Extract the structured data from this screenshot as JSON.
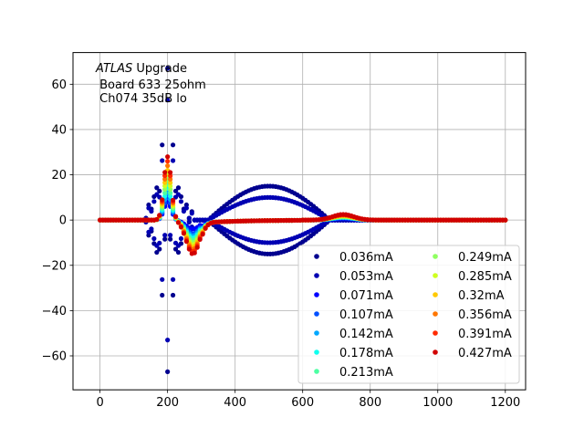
{
  "chart_data": {
    "type": "scatter",
    "title": "",
    "xlabel": "",
    "ylabel": "",
    "xlim": [
      -80,
      1260
    ],
    "ylim": [
      -75,
      74
    ],
    "xticks": [
      0,
      200,
      400,
      600,
      800,
      1000,
      1200
    ],
    "yticks": [
      -60,
      -40,
      -20,
      0,
      20,
      40,
      60
    ],
    "xtick_labels": [
      "0",
      "200",
      "400",
      "600",
      "800",
      "1000",
      "1200"
    ],
    "ytick_labels": [
      "−60",
      "−40",
      "−20",
      "0",
      "20",
      "40",
      "60"
    ],
    "grid": true,
    "legend_position": "lower-right",
    "legend_columns": 2,
    "annotation": {
      "line1_italic": "ATLAS",
      "line1_rest": " Upgrade",
      "line2": " Board 633 25ohm",
      "line3": " Ch074 35dB lo"
    },
    "series": [
      {
        "name": "0.036mA",
        "color": "#00008f",
        "peak": 67,
        "undershoot": -67,
        "plateau": 15,
        "kind": "osc"
      },
      {
        "name": "0.053mA",
        "color": "#0000b3",
        "peak": 53,
        "undershoot": -47,
        "plateau": 10,
        "kind": "osc"
      },
      {
        "name": "0.071mA",
        "color": "#0000ff",
        "peak": 8,
        "undershoot": -4,
        "plateau": 0,
        "kind": "pulse"
      },
      {
        "name": "0.107mA",
        "color": "#0050ff",
        "peak": 10,
        "undershoot": -6,
        "plateau": 0,
        "kind": "pulse"
      },
      {
        "name": "0.142mA",
        "color": "#00a8ff",
        "peak": 12,
        "undershoot": -7,
        "plateau": 0,
        "kind": "pulse"
      },
      {
        "name": "0.178mA",
        "color": "#10ffef",
        "peak": 14,
        "undershoot": -8,
        "plateau": 0,
        "kind": "pulse"
      },
      {
        "name": "0.213mA",
        "color": "#4cffa3",
        "peak": 16,
        "undershoot": -9,
        "plateau": 0,
        "kind": "pulse"
      },
      {
        "name": "0.249mA",
        "color": "#8fff60",
        "peak": 18,
        "undershoot": -10,
        "plateau": 0,
        "kind": "pulse"
      },
      {
        "name": "0.285mA",
        "color": "#cfff1f",
        "peak": 20,
        "undershoot": -11,
        "plateau": 0,
        "kind": "pulse"
      },
      {
        "name": "0.32mA",
        "color": "#ffc900",
        "peak": 22,
        "undershoot": -12,
        "plateau": 0,
        "kind": "pulse"
      },
      {
        "name": "0.356mA",
        "color": "#ff7600",
        "peak": 24,
        "undershoot": -13,
        "plateau": 0,
        "kind": "pulse"
      },
      {
        "name": "0.391mA",
        "color": "#ff2a00",
        "peak": 26,
        "undershoot": -14,
        "plateau": 0,
        "kind": "pulse"
      },
      {
        "name": "0.427mA",
        "color": "#d10000",
        "peak": 28,
        "undershoot": -15,
        "plateau": 0,
        "kind": "pulse"
      }
    ]
  }
}
